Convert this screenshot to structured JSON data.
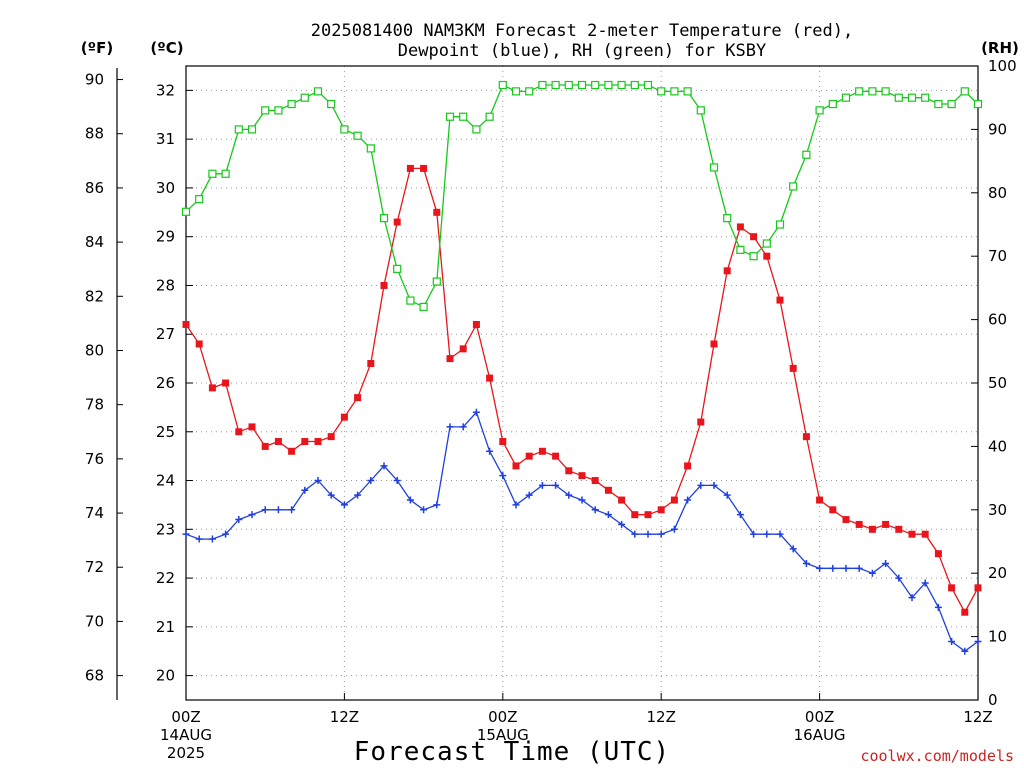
{
  "chart_data": {
    "type": "line",
    "title_line1": "2025081400 NAM3KM Forecast 2-meter Temperature (red),",
    "title_line2": "Dewpoint (blue), RH (green) for KSBY",
    "xlabel": "Forecast Time (UTC)",
    "credit": "coolwx.com/models",
    "units": {
      "left_f": "(ºF)",
      "left_c": "(ºC)",
      "right": "(RH)"
    },
    "x_range_hours": [
      0,
      60
    ],
    "x_ticks": [
      {
        "hour": 0,
        "lines": [
          "00Z",
          "14AUG",
          "2025"
        ]
      },
      {
        "hour": 12,
        "lines": [
          "12Z"
        ]
      },
      {
        "hour": 24,
        "lines": [
          "00Z",
          "15AUG"
        ]
      },
      {
        "hour": 36,
        "lines": [
          "12Z"
        ]
      },
      {
        "hour": 48,
        "lines": [
          "00Z",
          "16AUG"
        ]
      },
      {
        "hour": 60,
        "lines": [
          "12Z"
        ]
      }
    ],
    "c_range": [
      19.5,
      32.5
    ],
    "c_ticks": [
      20,
      21,
      22,
      23,
      24,
      25,
      26,
      27,
      28,
      29,
      30,
      31,
      32
    ],
    "f_ticks": [
      68,
      70,
      72,
      74,
      76,
      78,
      80,
      82,
      84,
      86,
      88,
      90
    ],
    "rh_range": [
      0,
      100
    ],
    "rh_ticks": [
      0,
      10,
      20,
      30,
      40,
      50,
      60,
      70,
      80,
      90,
      100
    ],
    "grid": true,
    "colors": {
      "temperature": "#e8161c",
      "dewpoint": "#1f3fe0",
      "rh": "#16c91a"
    },
    "series": [
      {
        "name": "Temperature",
        "unit": "C",
        "values": [
          27.2,
          26.8,
          25.9,
          26.0,
          25.0,
          25.1,
          24.7,
          24.8,
          24.6,
          24.8,
          24.8,
          24.9,
          25.3,
          25.7,
          26.4,
          28.0,
          29.3,
          30.4,
          30.4,
          29.5,
          26.5,
          26.7,
          27.2,
          26.1,
          24.8,
          24.3,
          24.5,
          24.6,
          24.5,
          24.2,
          24.1,
          24.0,
          23.8,
          23.6,
          23.3,
          23.3,
          23.4,
          23.6,
          24.3,
          25.2,
          26.8,
          28.3,
          29.2,
          29.0,
          28.6,
          27.7,
          26.3,
          24.9,
          23.6,
          23.4,
          23.2,
          23.1,
          23.0,
          23.1,
          23.0,
          22.9,
          22.9,
          22.5,
          21.8,
          21.3,
          21.8
        ]
      },
      {
        "name": "Dewpoint",
        "unit": "C",
        "values": [
          22.9,
          22.8,
          22.8,
          22.9,
          23.2,
          23.3,
          23.4,
          23.4,
          23.4,
          23.8,
          24.0,
          23.7,
          23.5,
          23.7,
          24.0,
          24.3,
          24.0,
          23.6,
          23.4,
          23.5,
          25.1,
          25.1,
          25.4,
          24.6,
          24.1,
          23.5,
          23.7,
          23.9,
          23.9,
          23.7,
          23.6,
          23.4,
          23.3,
          23.1,
          22.9,
          22.9,
          22.9,
          23.0,
          23.6,
          23.9,
          23.9,
          23.7,
          23.3,
          22.9,
          22.9,
          22.9,
          22.6,
          22.3,
          22.2,
          22.2,
          22.2,
          22.2,
          22.1,
          22.3,
          22.0,
          21.6,
          21.9,
          21.4,
          20.7,
          20.5,
          20.7
        ]
      },
      {
        "name": "RH",
        "unit": "%",
        "values": [
          77,
          79,
          83,
          83,
          90,
          90,
          93,
          93,
          94,
          95,
          96,
          94,
          90,
          89,
          87,
          76,
          68,
          63,
          62,
          66,
          92,
          92,
          90,
          92,
          97,
          96,
          96,
          97,
          97,
          97,
          97,
          97,
          97,
          97,
          97,
          97,
          96,
          96,
          96,
          93,
          84,
          76,
          71,
          70,
          72,
          75,
          81,
          86,
          93,
          94,
          95,
          96,
          96,
          96,
          95,
          95,
          95,
          94,
          94,
          96,
          94
        ]
      }
    ]
  }
}
